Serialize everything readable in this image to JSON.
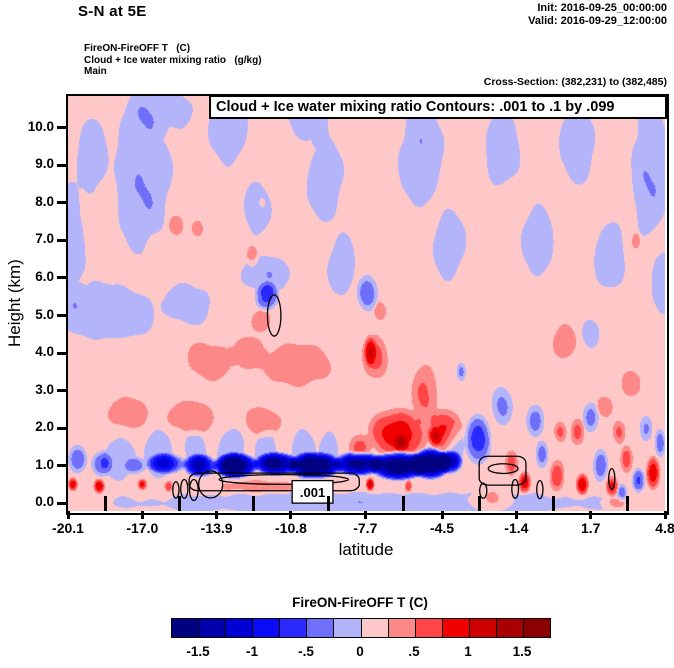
{
  "header": {
    "title": "S-N at 5E",
    "init_line": "Init: 2016-09-25_00:00:00",
    "valid_line": "Valid: 2016-09-29_12:00:00",
    "legend_line1": "FireON-FireOFF T   (C)",
    "legend_line2": "Cloud + Ice water mixing ratio   (g/kg)",
    "legend_line3": "Main",
    "cross_section": "Cross-Section: (382,231) to (382,485)"
  },
  "chart_data": {
    "type": "heatmap",
    "title": "Cloud + Ice water mixing ratio Contours: .001 to .1 by .099",
    "xlabel": "latitude",
    "ylabel": "Height (km)",
    "x_range": [
      -20.1,
      4.8
    ],
    "y_range": [
      -0.21,
      10.85
    ],
    "x_ticks": [
      -20.1,
      -17.0,
      -13.9,
      -10.8,
      -7.7,
      -4.5,
      -1.4,
      1.7,
      4.8
    ],
    "x_tick_labels": [
      "-20.1",
      "-17.0",
      "-13.9",
      "-10.8",
      "-7.7",
      "-4.5",
      "-1.4",
      "1.7",
      "4.8"
    ],
    "y_ticks": [
      0,
      1,
      2,
      3,
      4,
      5,
      6,
      7,
      8,
      9,
      10
    ],
    "y_tick_labels": [
      "0.0",
      "1.0",
      "2.0",
      "3.0",
      "4.0",
      "5.0",
      "6.0",
      "7.0",
      "8.0",
      "9.0",
      "10.0"
    ],
    "value_units": "C",
    "levels_min": -1.75,
    "levels_step": 0.25,
    "palette": [
      "#000080",
      "#0000ad",
      "#0000d4",
      "#0b0bf5",
      "#2a2aff",
      "#6f6ffa",
      "#b4b4fa",
      "#ffc8c8",
      "#fc8888",
      "#ff4545",
      "#f10000",
      "#cd0000",
      "#a80000",
      "#8b0000"
    ],
    "colorbar": {
      "title": "FireON-FireOFF T  (C)",
      "tick_labels": [
        "-1.5",
        "-1",
        "-.5",
        "0",
        ".5",
        "1",
        "1.5"
      ],
      "tick_positions": [
        1,
        3,
        5,
        7,
        9,
        11,
        13
      ]
    },
    "field": {
      "background": 0.12,
      "noise_amp": 0.05,
      "blobs": [
        [
          -19.1,
          9.3,
          0.8,
          1.3,
          -0.3
        ],
        [
          -17.0,
          8.7,
          1.4,
          2.4,
          -0.36
        ],
        [
          -16.2,
          10.6,
          1.6,
          0.9,
          -0.3
        ],
        [
          -13.4,
          10.1,
          1.0,
          1.3,
          -0.32
        ],
        [
          -12.2,
          7.8,
          0.7,
          0.9,
          -0.3
        ],
        [
          -10.0,
          10.4,
          1.1,
          1.0,
          -0.32
        ],
        [
          -8.7,
          6.4,
          0.7,
          1.0,
          -0.3
        ],
        [
          -9.4,
          8.6,
          0.9,
          1.4,
          -0.3
        ],
        [
          -5.4,
          9.3,
          1.1,
          1.7,
          -0.36
        ],
        [
          -4.2,
          6.9,
          0.8,
          1.1,
          -0.3
        ],
        [
          -2.0,
          9.5,
          0.9,
          1.3,
          -0.32
        ],
        [
          -0.5,
          7.0,
          0.8,
          1.2,
          -0.3
        ],
        [
          1.1,
          9.6,
          0.9,
          1.3,
          -0.32
        ],
        [
          2.5,
          6.6,
          0.8,
          1.2,
          -0.3
        ],
        [
          4.2,
          8.9,
          1.0,
          2.1,
          -0.36
        ],
        [
          4.7,
          5.9,
          0.6,
          1.0,
          -0.3
        ],
        [
          -20.0,
          6.9,
          0.8,
          1.9,
          -0.3
        ],
        [
          -18.5,
          5.1,
          2.6,
          0.9,
          -0.36
        ],
        [
          -15.0,
          5.3,
          1.3,
          0.7,
          -0.3
        ],
        [
          -11.8,
          6.1,
          1.4,
          0.6,
          -0.3
        ],
        [
          -7.6,
          5.6,
          0.5,
          0.55,
          -0.6
        ],
        [
          1.7,
          4.5,
          0.5,
          0.5,
          -0.3
        ],
        [
          -3.7,
          3.5,
          0.22,
          0.28,
          -0.42
        ],
        [
          -15.6,
          7.4,
          0.38,
          0.32,
          0.32
        ],
        [
          -14.7,
          7.3,
          0.3,
          0.27,
          0.32
        ],
        [
          -12.4,
          6.6,
          0.3,
          0.36,
          0.32
        ],
        [
          -7.1,
          5.1,
          0.3,
          0.3,
          0.32
        ],
        [
          -12.0,
          8.0,
          0.16,
          0.16,
          0.3
        ],
        [
          3.6,
          7.0,
          0.25,
          0.3,
          0.3
        ],
        [
          -14.2,
          3.8,
          1.2,
          0.65,
          0.32
        ],
        [
          -10.6,
          3.7,
          1.7,
          0.7,
          0.36
        ],
        [
          -12.6,
          4.0,
          0.9,
          0.55,
          0.3
        ],
        [
          -12.1,
          4.85,
          0.5,
          0.38,
          0.34
        ],
        [
          -7.3,
          3.9,
          0.65,
          0.7,
          0.5
        ],
        [
          -7.5,
          4.05,
          0.28,
          0.45,
          0.5
        ],
        [
          0.6,
          4.3,
          0.6,
          0.58,
          0.36
        ],
        [
          3.4,
          3.2,
          0.5,
          0.42,
          0.32
        ],
        [
          2.3,
          2.6,
          0.42,
          0.36,
          0.32
        ],
        [
          -17.6,
          2.4,
          1.1,
          0.5,
          0.3
        ],
        [
          -15.0,
          2.3,
          1.3,
          0.55,
          0.32
        ],
        [
          -12.0,
          2.2,
          1.0,
          0.5,
          0.3
        ],
        [
          -11.8,
          5.5,
          0.55,
          0.42,
          -0.75
        ],
        [
          -6.3,
          1.85,
          1.4,
          0.75,
          0.8
        ],
        [
          -6.2,
          1.6,
          0.35,
          0.25,
          0.5
        ],
        [
          -5.2,
          2.9,
          0.65,
          0.9,
          0.45
        ],
        [
          -7.9,
          1.5,
          0.55,
          0.4,
          0.45
        ],
        [
          -4.4,
          1.95,
          0.8,
          0.65,
          0.65
        ],
        [
          -4.8,
          1.75,
          0.3,
          0.3,
          0.5
        ],
        [
          -3.0,
          1.7,
          0.6,
          0.75,
          -0.75
        ],
        [
          -2.0,
          2.6,
          0.5,
          0.6,
          -0.4
        ],
        [
          -0.6,
          2.2,
          0.45,
          0.5,
          -0.5
        ],
        [
          1.7,
          2.3,
          0.38,
          0.45,
          -0.45
        ],
        [
          -1.6,
          1.05,
          0.3,
          0.38,
          0.5
        ],
        [
          -1.05,
          0.55,
          0.3,
          0.32,
          0.85
        ],
        [
          -0.35,
          1.3,
          0.3,
          0.42,
          -0.5
        ],
        [
          0.3,
          0.75,
          0.36,
          0.48,
          0.6
        ],
        [
          1.15,
          1.9,
          0.35,
          0.42,
          0.5
        ],
        [
          1.35,
          0.5,
          0.3,
          0.32,
          0.85
        ],
        [
          2.1,
          1.0,
          0.36,
          0.5,
          -0.6
        ],
        [
          2.6,
          0.45,
          0.3,
          0.3,
          0.7
        ],
        [
          3.2,
          1.15,
          0.3,
          0.42,
          0.5
        ],
        [
          3.7,
          0.6,
          0.3,
          0.36,
          -0.65
        ],
        [
          4.3,
          0.8,
          0.32,
          0.5,
          0.8
        ],
        [
          4.6,
          1.6,
          0.25,
          0.42,
          -0.5
        ],
        [
          2.9,
          1.9,
          0.3,
          0.36,
          0.4
        ],
        [
          0.45,
          1.9,
          0.3,
          0.32,
          0.45
        ],
        [
          3.0,
          0.28,
          0.25,
          0.25,
          -0.5
        ],
        [
          4.0,
          2.0,
          0.3,
          0.4,
          -0.4
        ],
        [
          -17.3,
          1.0,
          0.5,
          0.25,
          -0.5
        ],
        [
          -16.0,
          1.05,
          0.9,
          0.3,
          -1.0
        ],
        [
          -14.6,
          1.0,
          0.75,
          0.33,
          -1.3
        ],
        [
          -13.1,
          1.0,
          1.0,
          0.36,
          -1.9
        ],
        [
          -11.4,
          1.05,
          1.0,
          0.33,
          -1.7
        ],
        [
          -9.8,
          1.0,
          1.2,
          0.38,
          -1.9
        ],
        [
          -8.0,
          1.05,
          1.1,
          0.35,
          -1.8
        ],
        [
          -6.3,
          1.0,
          1.3,
          0.42,
          -2.0
        ],
        [
          -5.0,
          1.05,
          0.9,
          0.45,
          -2.0
        ],
        [
          -4.2,
          1.1,
          0.6,
          0.33,
          -1.4
        ],
        [
          -19.7,
          1.15,
          0.45,
          0.42,
          -0.55
        ],
        [
          -18.7,
          1.05,
          0.5,
          0.38,
          -0.6
        ],
        [
          -18.0,
          1.2,
          0.8,
          0.7,
          -0.3
        ],
        [
          -16.3,
          1.3,
          0.7,
          0.78,
          -0.35
        ],
        [
          -14.8,
          1.35,
          0.6,
          0.72,
          -0.3
        ],
        [
          -13.3,
          1.3,
          0.7,
          0.78,
          -0.35
        ],
        [
          -11.8,
          1.35,
          0.6,
          0.72,
          -0.3
        ],
        [
          -10.3,
          1.3,
          0.6,
          0.78,
          -0.35
        ],
        [
          -9.2,
          1.35,
          0.5,
          0.68,
          -0.3
        ],
        [
          -4.0,
          1.55,
          0.5,
          0.62,
          -0.35
        ],
        [
          -7.5,
          0.0,
          13.5,
          0.34,
          -0.3
        ],
        [
          -2.5,
          0.05,
          1.2,
          0.28,
          0.35
        ],
        [
          2.8,
          0.0,
          0.8,
          0.22,
          0.3
        ],
        [
          -11.5,
          0.45,
          3.6,
          0.2,
          0.22
        ],
        [
          -19.9,
          0.5,
          0.22,
          0.2,
          0.8
        ],
        [
          -18.8,
          0.45,
          0.26,
          0.22,
          0.9
        ],
        [
          -17.0,
          0.5,
          0.22,
          0.17,
          0.7
        ],
        [
          -15.9,
          0.45,
          0.2,
          0.16,
          0.55
        ],
        [
          -7.5,
          0.5,
          0.2,
          0.2,
          0.95
        ],
        [
          -5.9,
          0.45,
          0.16,
          0.18,
          0.6
        ]
      ]
    },
    "cloud_contours": {
      "label": ".001",
      "ellipses": [
        [
          -11.5,
          5.0,
          0.28,
          0.55
        ],
        [
          -15.6,
          0.35,
          0.13,
          0.22
        ],
        [
          -15.25,
          0.38,
          0.15,
          0.25
        ],
        [
          -14.85,
          0.35,
          0.18,
          0.28
        ],
        [
          -14.15,
          0.5,
          0.5,
          0.36
        ],
        [
          -11.1,
          0.63,
          2.7,
          0.13
        ],
        [
          -1.95,
          0.92,
          0.62,
          0.13
        ],
        [
          -2.78,
          0.33,
          0.15,
          0.2
        ],
        [
          -1.45,
          0.38,
          0.14,
          0.25
        ],
        [
          -0.42,
          0.36,
          0.13,
          0.24
        ],
        [
          2.58,
          0.65,
          0.13,
          0.27
        ]
      ],
      "boxes": [
        [
          -15.05,
          0.33,
          -7.95,
          0.8
        ],
        [
          -2.95,
          0.48,
          -1.0,
          1.25
        ]
      ],
      "label_box": [
        -10.75,
        0.0,
        -9.05,
        0.6
      ]
    }
  }
}
